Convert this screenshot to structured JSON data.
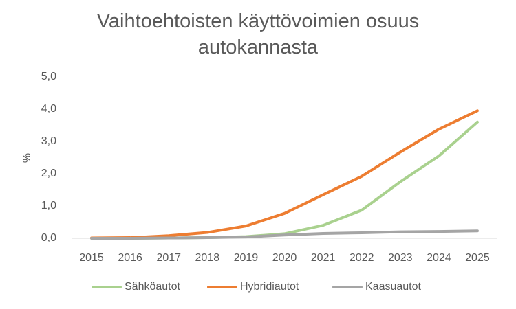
{
  "chart_data": {
    "type": "line",
    "title": "Vaihtoehtoisten käyttövoimien osuus autokannasta",
    "y_label": "%",
    "categories": [
      "2015",
      "2016",
      "2017",
      "2018",
      "2019",
      "2020",
      "2021",
      "2022",
      "2023",
      "2024",
      "2025"
    ],
    "series": [
      {
        "name": "Sähköautot",
        "color": "#a9d18e",
        "values": [
          0,
          0,
          0.01,
          0.02,
          0.05,
          0.14,
          0.4,
          0.87,
          1.75,
          2.55,
          3.6
        ]
      },
      {
        "name": "Hybridiautot",
        "color": "#ed7d31",
        "values": [
          0.01,
          0.02,
          0.08,
          0.18,
          0.38,
          0.77,
          1.35,
          1.92,
          2.67,
          3.38,
          3.95
        ]
      },
      {
        "name": "Kaasuautot",
        "color": "#a5a5a5",
        "values": [
          0,
          0,
          0.01,
          0.02,
          0.04,
          0.1,
          0.15,
          0.17,
          0.2,
          0.21,
          0.23
        ]
      }
    ],
    "ylim": [
      0,
      5
    ],
    "yticks": [
      {
        "value": 0,
        "label": "0,0"
      },
      {
        "value": 1,
        "label": "1,0"
      },
      {
        "value": 2,
        "label": "2,0"
      },
      {
        "value": 3,
        "label": "3,0"
      },
      {
        "value": 4,
        "label": "4,0"
      },
      {
        "value": 5,
        "label": "5,0"
      }
    ],
    "grid": false,
    "legend": "bottom"
  }
}
